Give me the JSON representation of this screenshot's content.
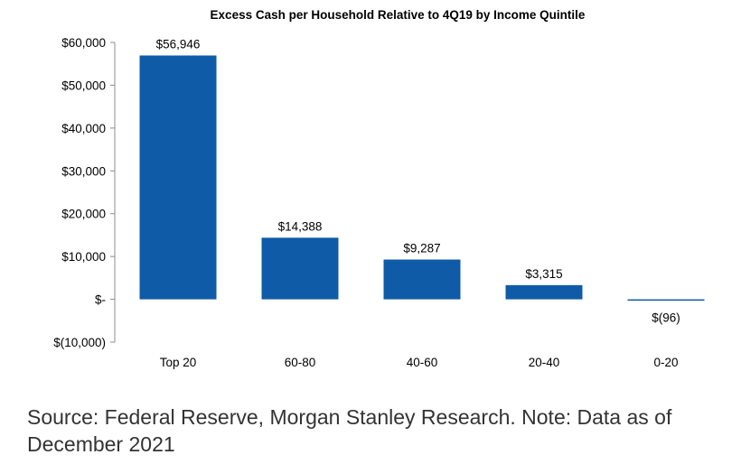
{
  "chart_data": {
    "type": "bar",
    "title": "Excess Cash per Household Relative to 4Q19 by Income Quintile",
    "categories": [
      "Top 20",
      "60-80",
      "40-60",
      "20-40",
      "0-20"
    ],
    "values": [
      56946,
      14388,
      9287,
      3315,
      -96
    ],
    "data_labels": [
      "$56,946",
      "$14,388",
      "$9,287",
      "$3,315",
      "$(96)"
    ],
    "ylim": [
      -10000,
      60000
    ],
    "y_ticks": [
      {
        "value": 60000,
        "label": "$60,000"
      },
      {
        "value": 50000,
        "label": "$50,000"
      },
      {
        "value": 40000,
        "label": "$40,000"
      },
      {
        "value": 30000,
        "label": "$30,000"
      },
      {
        "value": 20000,
        "label": "$20,000"
      },
      {
        "value": 10000,
        "label": "$10,000"
      },
      {
        "value": 0,
        "label": "$-"
      },
      {
        "value": -10000,
        "label": "$(10,000)"
      }
    ],
    "bar_color": "#0F5BA7",
    "grid": false,
    "legend": "none"
  },
  "source_note": "Source: Federal Reserve, Morgan Stanley Research. Note: Data as of December 2021"
}
